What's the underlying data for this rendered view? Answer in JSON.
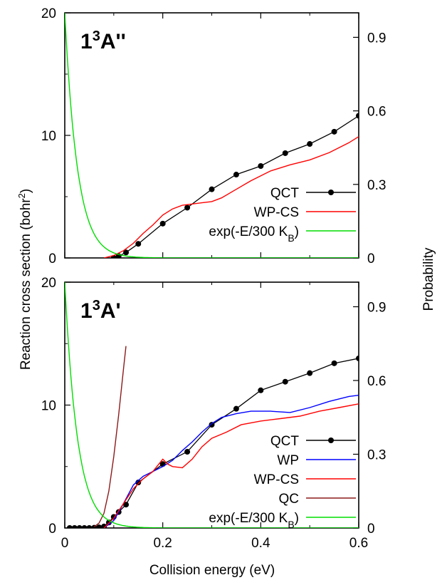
{
  "figure": {
    "ylabel_left": "Reaction cross section (bohr",
    "ylabel_left_sup": "2",
    "ylabel_left_end": ")",
    "ylabel_right": "Probability",
    "xlabel": "Collision energy (eV)"
  },
  "chart_data": [
    {
      "type": "line",
      "panel_label": "1",
      "panel_label_sup": "3",
      "panel_label_suffix": "A''",
      "xlim": [
        0,
        0.6
      ],
      "ylim": [
        0,
        20
      ],
      "y2lim": [
        0,
        1
      ],
      "xticks": [
        "0",
        "0.2",
        "0.4",
        "0.6"
      ],
      "yticks": [
        "0",
        "10",
        "20"
      ],
      "y2ticks": [
        "0",
        "0.3",
        "0.6",
        "0.9"
      ],
      "legend_position": "lower-right",
      "series": [
        {
          "name": "QCT",
          "color": "#000000",
          "markers": true,
          "axis": "left",
          "x": [
            0.1,
            0.11,
            0.125,
            0.15,
            0.2,
            0.25,
            0.3,
            0.35,
            0.4,
            0.45,
            0.5,
            0.55,
            0.6
          ],
          "y": [
            0.0,
            0.15,
            0.45,
            1.15,
            2.8,
            4.1,
            5.6,
            6.8,
            7.5,
            8.55,
            9.3,
            10.3,
            11.6
          ]
        },
        {
          "name": "WP-CS",
          "color": "#ff0000",
          "markers": false,
          "axis": "left",
          "x": [
            0.08,
            0.1,
            0.12,
            0.14,
            0.16,
            0.18,
            0.2,
            0.22,
            0.24,
            0.26,
            0.28,
            0.3,
            0.32,
            0.35,
            0.38,
            0.42,
            0.46,
            0.5,
            0.54,
            0.58,
            0.6
          ],
          "y": [
            0.0,
            0.2,
            0.6,
            1.2,
            2.0,
            2.7,
            3.5,
            4.0,
            4.3,
            4.4,
            4.5,
            4.6,
            4.9,
            5.6,
            6.3,
            7.1,
            7.6,
            8.0,
            8.6,
            9.4,
            9.9
          ]
        },
        {
          "name": "exp(-E/300 K",
          "name_sub": "B",
          "name_end": ")",
          "color": "#00dd00",
          "markers": false,
          "axis": "right",
          "func": "exp",
          "scale": 0.0258
        }
      ]
    },
    {
      "type": "line",
      "panel_label": "1",
      "panel_label_sup": "3",
      "panel_label_suffix": "A'",
      "xlim": [
        0,
        0.6
      ],
      "ylim": [
        0,
        20
      ],
      "y2lim": [
        0,
        1
      ],
      "xticks": [
        "0",
        "0.2",
        "0.4",
        "0.6"
      ],
      "yticks": [
        "0",
        "10",
        "20"
      ],
      "y2ticks": [
        "0",
        "0.3",
        "0.6",
        "0.9"
      ],
      "legend_position": "lower-right",
      "series": [
        {
          "name": "QCT",
          "color": "#000000",
          "markers": true,
          "axis": "left",
          "x": [
            0.01,
            0.02,
            0.03,
            0.04,
            0.05,
            0.06,
            0.07,
            0.08,
            0.09,
            0.1,
            0.11,
            0.125,
            0.15,
            0.2,
            0.25,
            0.3,
            0.35,
            0.4,
            0.45,
            0.5,
            0.55,
            0.6
          ],
          "y": [
            0.0,
            0.0,
            0.0,
            0.0,
            0.0,
            0.02,
            0.05,
            0.12,
            0.45,
            0.9,
            1.3,
            1.9,
            3.7,
            5.2,
            6.2,
            8.4,
            9.7,
            11.2,
            11.9,
            12.6,
            13.4,
            13.8
          ]
        },
        {
          "name": "WP",
          "color": "#0000ff",
          "markers": false,
          "axis": "left",
          "x": [
            0.08,
            0.1,
            0.12,
            0.14,
            0.16,
            0.18,
            0.2,
            0.22,
            0.24,
            0.26,
            0.28,
            0.3,
            0.32,
            0.35,
            0.38,
            0.42,
            0.46,
            0.5,
            0.54,
            0.58,
            0.6
          ],
          "y": [
            0.0,
            0.6,
            2.0,
            3.5,
            4.2,
            4.6,
            5.0,
            5.5,
            6.3,
            7.0,
            7.8,
            8.5,
            9.0,
            9.3,
            9.5,
            9.5,
            9.4,
            9.8,
            10.3,
            10.7,
            10.8
          ]
        },
        {
          "name": "WP-CS",
          "color": "#ff0000",
          "markers": false,
          "axis": "left",
          "x": [
            0.08,
            0.1,
            0.12,
            0.14,
            0.16,
            0.18,
            0.2,
            0.21,
            0.22,
            0.24,
            0.26,
            0.28,
            0.3,
            0.33,
            0.36,
            0.4,
            0.44,
            0.48,
            0.52,
            0.56,
            0.6
          ],
          "y": [
            0.0,
            0.8,
            2.0,
            3.2,
            4.0,
            4.6,
            5.6,
            5.2,
            5.0,
            4.9,
            5.6,
            6.6,
            7.3,
            7.8,
            8.4,
            8.7,
            8.9,
            9.1,
            9.5,
            9.8,
            10.1
          ]
        },
        {
          "name": "QC",
          "color": "#8b1a1a",
          "markers": false,
          "axis": "left",
          "x": [
            0.06,
            0.07,
            0.08,
            0.09,
            0.1,
            0.11,
            0.12,
            0.125
          ],
          "y": [
            0.1,
            0.4,
            1.2,
            3.0,
            5.8,
            9.2,
            13.0,
            14.8
          ]
        },
        {
          "name": "exp(-E/300 K",
          "name_sub": "B",
          "name_end": ")",
          "color": "#00dd00",
          "markers": false,
          "axis": "right",
          "func": "exp",
          "scale": 0.0258
        }
      ]
    }
  ]
}
